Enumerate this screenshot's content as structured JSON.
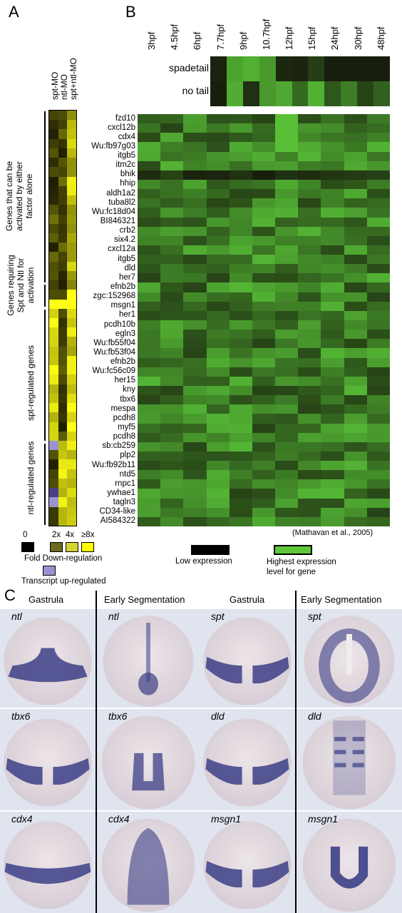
{
  "panels": {
    "a": "A",
    "b": "B",
    "c": "C"
  },
  "panel_a": {
    "columns": [
      "spt-MO",
      "ntl-MO",
      "spt+ntl-MO"
    ],
    "groups": [
      {
        "label_lines": [
          "Genes that can be",
          "activated by either",
          "factor alone"
        ]
      },
      {
        "label_lines": [
          "Genes requiring",
          "Spt and Ntl for",
          "activation"
        ]
      },
      {
        "label_lines": [
          "spt-regulated genes"
        ]
      },
      {
        "label_lines": [
          "ntl-regulated genes"
        ]
      }
    ],
    "legend": {
      "zero": "0",
      "levels": [
        "2x",
        "4x",
        "≥8x"
      ],
      "caption": "Fold Down-regulation",
      "up_caption": "Transcript up-regulated",
      "colors": [
        "#000000",
        "#6b6a1e",
        "#d6d530",
        "#ffff00"
      ],
      "up_color": "#9a93d0"
    }
  },
  "panel_b": {
    "timepoints": [
      "3hpf",
      "4.5hpf",
      "6hpf",
      "7.7hpf",
      "9hpf",
      "10.7hpf",
      "12hpf",
      "15hpf",
      "24hpf",
      "30hpf",
      "48hpf"
    ],
    "row_labels": [
      "spadetail",
      "no tail"
    ],
    "legend_low": "Low expression",
    "legend_high_lines": [
      "Highest expression",
      "level for gene"
    ],
    "citation": "(Mathavan et al., 2005)",
    "low_color": "#000000",
    "high_color": "#5fc83a"
  },
  "genes": [
    "fzd10",
    "cxcl12b",
    "cdx4",
    "Wu:fb97g03",
    "itgb5",
    "itm2c",
    "bhik",
    "hhip",
    "aldh1a2",
    "tuba8l2",
    "Wu:fc18d04",
    "BI846321",
    "crb2",
    "six4.2",
    "cxcl12a",
    "itgb5",
    "dld",
    "her7",
    "efnb2b",
    "zgc:152968",
    "msgn1",
    "her1",
    "pcdh10b",
    "egln3",
    "Wu:fb55f04",
    "Wu:fb53f04",
    "efnb2b",
    "Wu:fc56c09",
    "her15",
    "kny",
    "tbx6",
    "mespa",
    "pcdh8",
    "myf5",
    "pcdh8",
    "sb:cb259",
    "plp2",
    "Wu:fb92b11",
    "ntd5",
    "rnpc1",
    "ywhae1",
    "tagln3",
    "CD34-like",
    "AI584322"
  ],
  "panel_c": {
    "stages": [
      "Gastrula",
      "Early Segmentation",
      "Gastrula",
      "Early Segmentation"
    ],
    "rows": [
      [
        "ntl",
        "ntl",
        "spt",
        "spt"
      ],
      [
        "tbx6",
        "tbx6",
        "dld",
        "dld"
      ],
      [
        "cdx4",
        "cdx4",
        "msgn1",
        "msgn1"
      ]
    ]
  }
}
